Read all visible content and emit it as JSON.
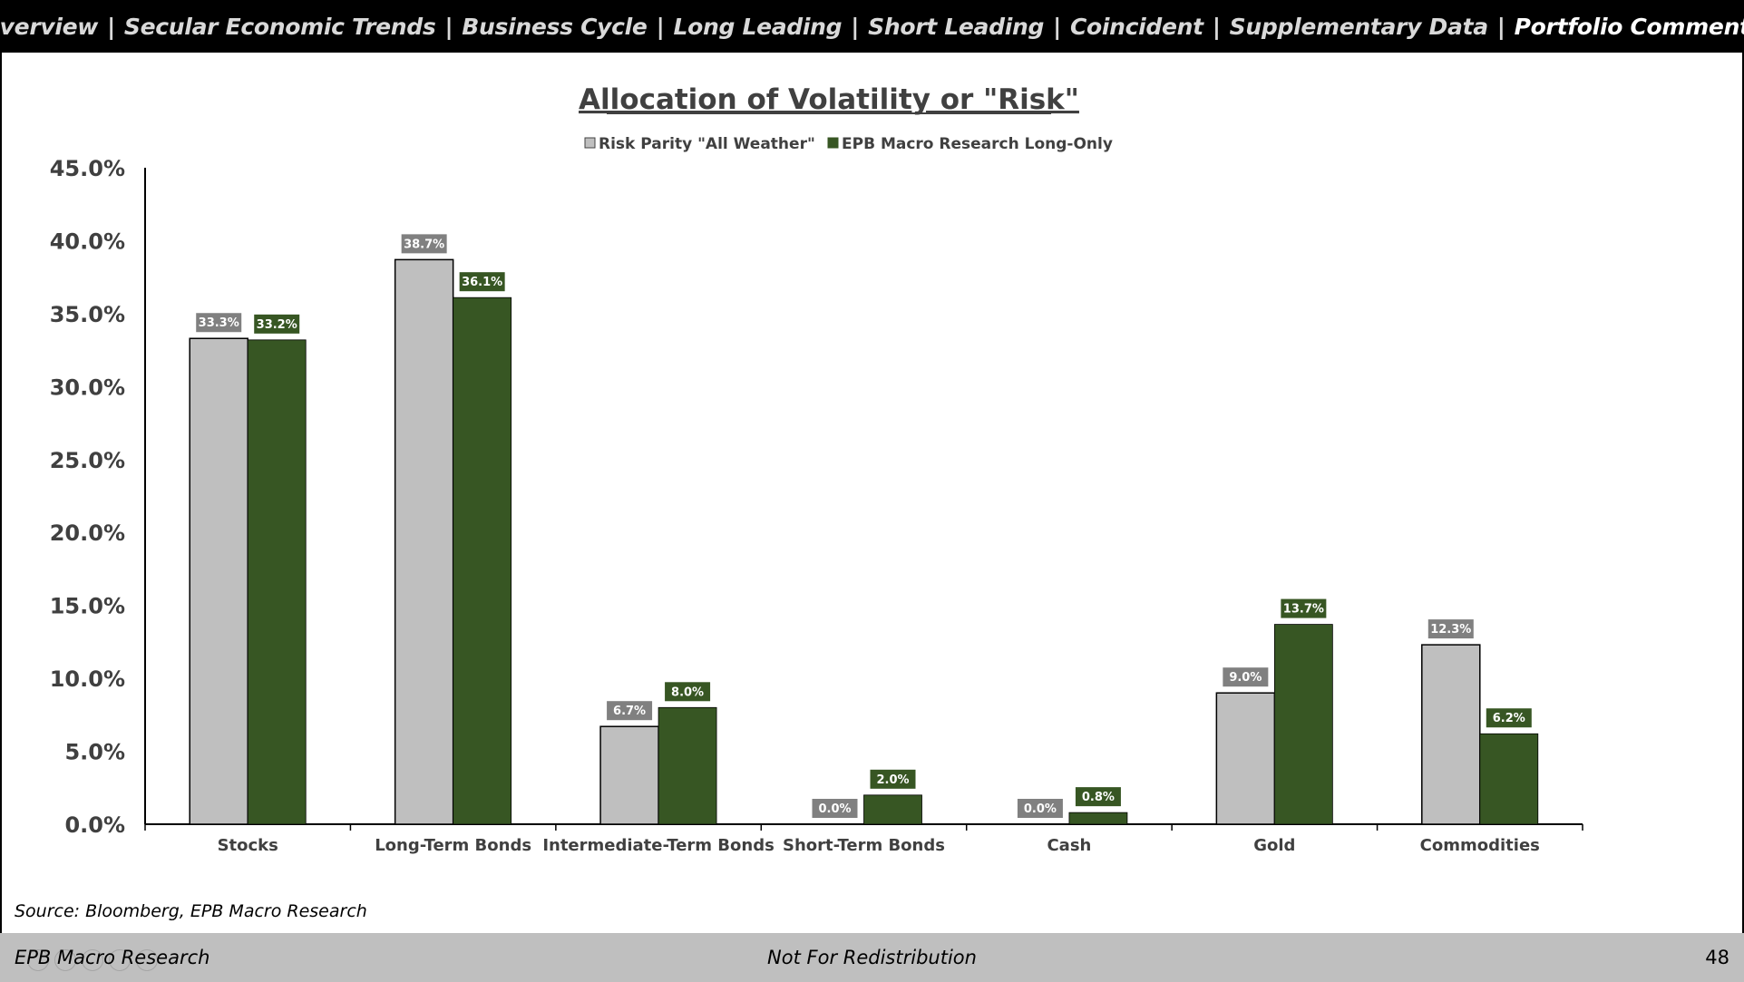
{
  "nav": {
    "items": [
      {
        "label": "Overview",
        "active": false
      },
      {
        "label": "Secular Economic Trends",
        "active": false
      },
      {
        "label": "Business Cycle",
        "active": false
      },
      {
        "label": "Long Leading",
        "active": false
      },
      {
        "label": "Short Leading",
        "active": false
      },
      {
        "label": "Coincident",
        "active": false
      },
      {
        "label": "Supplementary Data",
        "active": false
      },
      {
        "label": "Portfolio Comments",
        "active": true
      }
    ],
    "separator": "|"
  },
  "chart_data": {
    "type": "bar",
    "title": "Allocation of Volatility or \"Risk\"",
    "categories": [
      "Stocks",
      "Long-Term Bonds",
      "Intermediate-Term Bonds",
      "Short-Term Bonds",
      "Cash",
      "Gold",
      "Commodities"
    ],
    "series": [
      {
        "name": "Risk Parity \"All Weather\"",
        "color": "#bfbfbf",
        "label_bg": "#808080",
        "values": [
          33.3,
          38.7,
          6.7,
          0.0,
          0.0,
          9.0,
          12.3
        ]
      },
      {
        "name": "EPB Macro Research Long-Only",
        "color": "#375623",
        "label_bg": "#375623",
        "values": [
          33.2,
          36.1,
          8.0,
          2.0,
          0.8,
          13.7,
          6.2
        ]
      }
    ],
    "ylim": [
      0,
      45
    ],
    "yticks": [
      0,
      5,
      10,
      15,
      20,
      25,
      30,
      35,
      40,
      45
    ],
    "ytick_format": "percent_1dp",
    "legend_position": "top-center",
    "grid": false
  },
  "source": "Source: Bloomberg, EPB Macro Research",
  "footer": {
    "left": "EPB Macro Research",
    "center": "Not For Redistribution",
    "page_number": "48"
  }
}
